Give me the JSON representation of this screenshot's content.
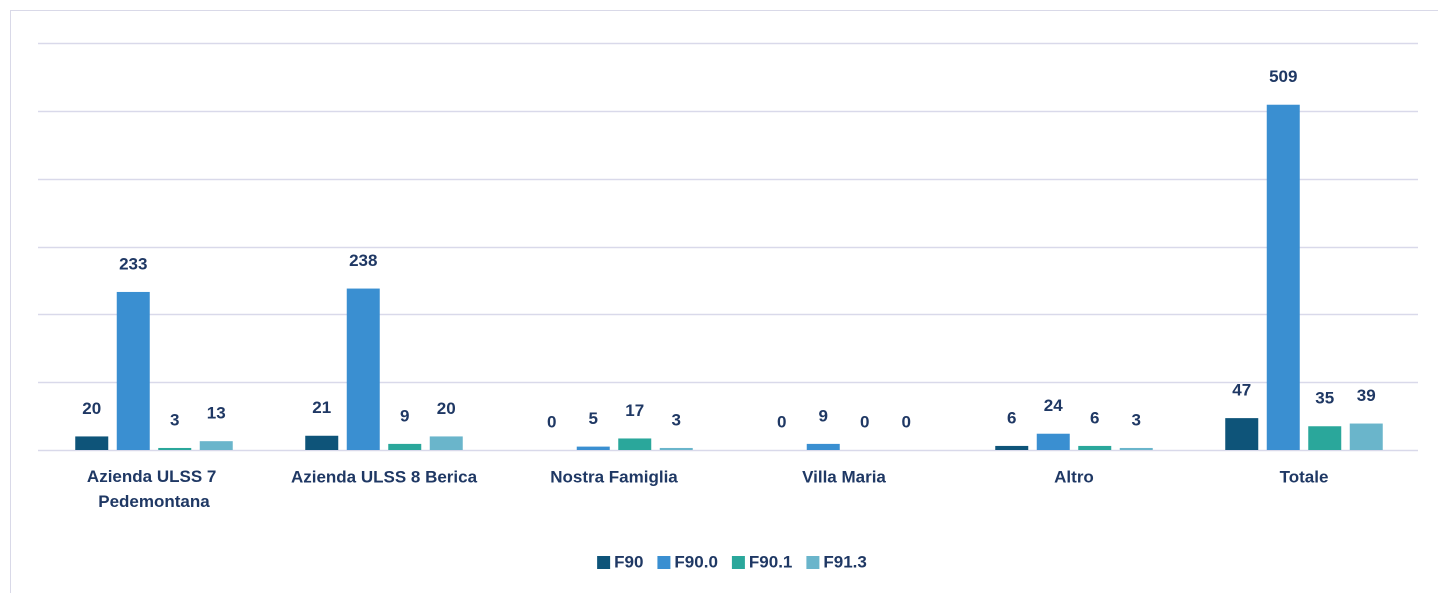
{
  "chart_data": {
    "type": "bar",
    "categories": [
      "Azienda ULSS 7 Pedemontana",
      "Azienda ULSS 8 Berica",
      "Nostra Famiglia",
      "Villa Maria",
      "Altro",
      "Totale"
    ],
    "series": [
      {
        "name": "F90",
        "color": "#0e5479",
        "values": [
          20,
          21,
          0,
          0,
          6,
          47
        ]
      },
      {
        "name": "F90.0",
        "color": "#3a8fd1",
        "values": [
          233,
          238,
          5,
          9,
          24,
          509
        ]
      },
      {
        "name": "F90.1",
        "color": "#2aa79b",
        "values": [
          3,
          9,
          17,
          0,
          6,
          35
        ]
      },
      {
        "name": "F91.3",
        "color": "#6ab5cb",
        "values": [
          13,
          20,
          3,
          0,
          3,
          39
        ]
      }
    ],
    "ylim": [
      0,
      600
    ],
    "yticks": [
      0,
      100,
      200,
      300,
      400,
      500,
      600
    ],
    "grid": true,
    "legend": "bottom"
  }
}
